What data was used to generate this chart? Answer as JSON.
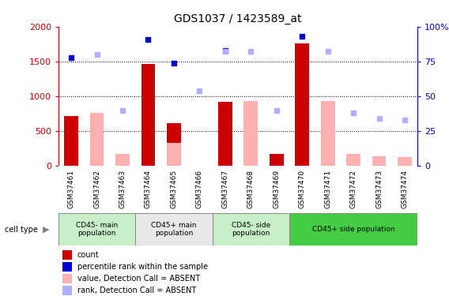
{
  "title": "GDS1037 / 1423589_at",
  "samples": [
    "GSM37461",
    "GSM37462",
    "GSM37463",
    "GSM37464",
    "GSM37465",
    "GSM37466",
    "GSM37467",
    "GSM37468",
    "GSM37469",
    "GSM37470",
    "GSM37471",
    "GSM37472",
    "GSM37473",
    "GSM37474"
  ],
  "count_values": [
    720,
    null,
    null,
    1460,
    610,
    null,
    920,
    null,
    170,
    1760,
    null,
    null,
    null,
    null
  ],
  "count_absent_values": [
    null,
    760,
    175,
    null,
    325,
    null,
    null,
    930,
    null,
    null,
    930,
    170,
    140,
    130
  ],
  "rank_present_values": [
    78,
    null,
    null,
    91,
    74,
    null,
    83,
    null,
    null,
    93,
    null,
    null,
    null,
    null
  ],
  "rank_absent_values": [
    null,
    80,
    40,
    null,
    null,
    54,
    82,
    82,
    40,
    null,
    82,
    38,
    34,
    33
  ],
  "cell_type_groups": [
    {
      "label": "CD45- main\npopulation",
      "start": 0,
      "end": 3,
      "color": "#c8f0c8"
    },
    {
      "label": "CD45+ main\npopulation",
      "start": 3,
      "end": 6,
      "color": "#e8e8e8"
    },
    {
      "label": "CD45- side\npopulation",
      "start": 6,
      "end": 9,
      "color": "#c8f0c8"
    },
    {
      "label": "CD45+ side population",
      "start": 9,
      "end": 14,
      "color": "#44cc44"
    }
  ],
  "ylim_left": [
    0,
    2000
  ],
  "ylim_right": [
    0,
    100
  ],
  "yticks_left": [
    0,
    500,
    1000,
    1500,
    2000
  ],
  "ytick_labels_left": [
    "0",
    "500",
    "1000",
    "1500",
    "2000"
  ],
  "yticks_right": [
    0,
    25,
    50,
    75,
    100
  ],
  "ytick_labels_right": [
    "0",
    "25",
    "50",
    "75",
    "100%"
  ],
  "color_count": "#cc0000",
  "color_rank_present": "#0000cc",
  "color_count_absent": "#ffb0b0",
  "color_rank_absent": "#b0b0ff",
  "grid_yticks": [
    500,
    1000,
    1500
  ],
  "bg_color": "#ffffff",
  "xtick_bg": "#d8d8d8",
  "cell_type_label": "cell type",
  "legend_items": [
    {
      "color": "#cc0000",
      "label": "count"
    },
    {
      "color": "#0000cc",
      "label": "percentile rank within the sample"
    },
    {
      "color": "#ffb0b0",
      "label": "value, Detection Call = ABSENT"
    },
    {
      "color": "#b0b0ff",
      "label": "rank, Detection Call = ABSENT"
    }
  ]
}
